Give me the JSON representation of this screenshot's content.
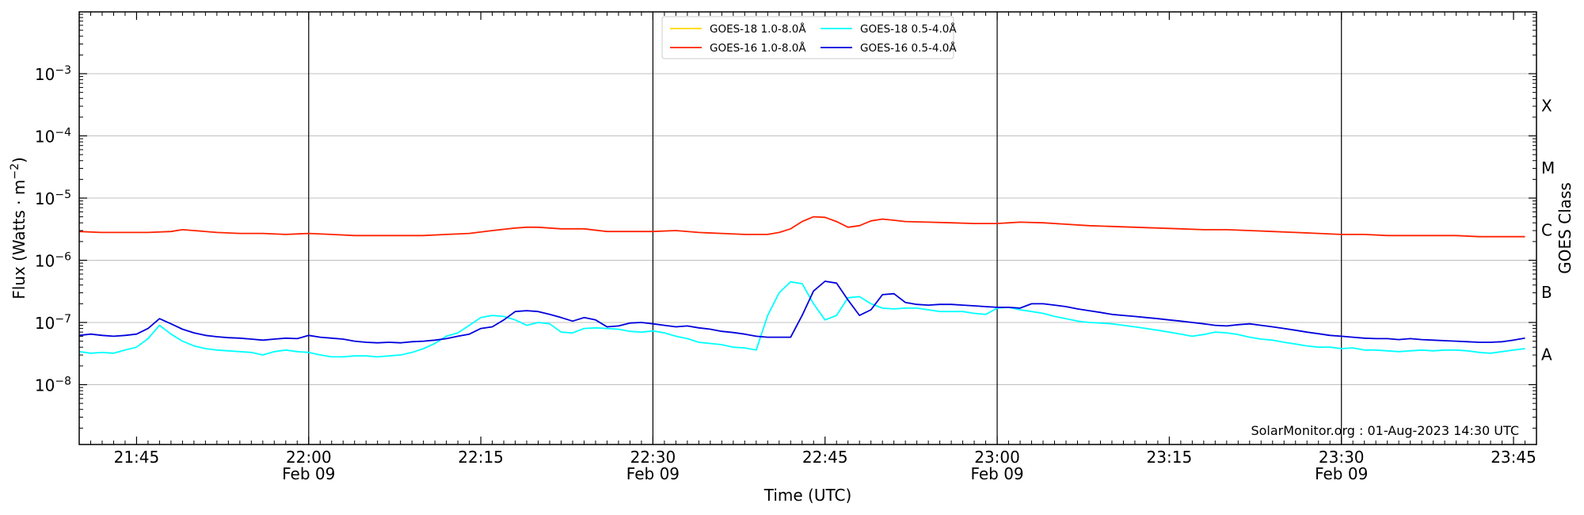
{
  "chart_data": {
    "type": "line",
    "x_unit": "minutes after 21:40 UTC, Feb 09",
    "xlim": [
      0,
      127
    ],
    "ylim_log10": [
      -9,
      -2
    ],
    "ylabel": "Flux (Watts · m",
    "ylabel_exp": "−2",
    "ylabel_close": ")",
    "xlabel": "Time (UTC)",
    "right_label": "GOES Class",
    "credit": "SolarMonitor.org : 01-Aug-2023 14:30 UTC",
    "y_ticks": [
      {
        "exp": -3,
        "base": "10",
        "sup": "−3"
      },
      {
        "exp": -4,
        "base": "10",
        "sup": "−4"
      },
      {
        "exp": -5,
        "base": "10",
        "sup": "−5"
      },
      {
        "exp": -6,
        "base": "10",
        "sup": "−6"
      },
      {
        "exp": -7,
        "base": "10",
        "sup": "−7"
      },
      {
        "exp": -8,
        "base": "10",
        "sup": "−8"
      }
    ],
    "x_ticks": [
      {
        "t": 5,
        "label": "21:45",
        "date": ""
      },
      {
        "t": 20,
        "label": "22:00",
        "date": "Feb 09"
      },
      {
        "t": 35,
        "label": "22:15",
        "date": ""
      },
      {
        "t": 50,
        "label": "22:30",
        "date": "Feb 09"
      },
      {
        "t": 65,
        "label": "22:45",
        "date": ""
      },
      {
        "t": 80,
        "label": "23:00",
        "date": "Feb 09"
      },
      {
        "t": 95,
        "label": "23:15",
        "date": ""
      },
      {
        "t": 110,
        "label": "23:30",
        "date": "Feb 09"
      },
      {
        "t": 125,
        "label": "23:45",
        "date": ""
      }
    ],
    "goes_classes": [
      {
        "label": "X",
        "exp": -3.5
      },
      {
        "label": "M",
        "exp": -4.5
      },
      {
        "label": "C",
        "exp": -5.5
      },
      {
        "label": "B",
        "exp": -6.5
      },
      {
        "label": "A",
        "exp": -7.5
      }
    ],
    "legend": [
      {
        "label": "GOES-18 1.0-8.0Å",
        "color": "#ffd700"
      },
      {
        "label": "GOES-18 0.5-4.0Å",
        "color": "#00ffff"
      },
      {
        "label": "GOES-16 1.0-8.0Å",
        "color": "#ff2200"
      },
      {
        "label": "GOES-16 0.5-4.0Å",
        "color": "#0000dd"
      }
    ],
    "series": [
      {
        "name": "GOES-16 1.0-8.0Å",
        "color": "#ff2200",
        "x": [
          0,
          2,
          4,
          6,
          8,
          9,
          10,
          12,
          14,
          16,
          18,
          20,
          22,
          24,
          26,
          28,
          30,
          32,
          34,
          36,
          38,
          39,
          40,
          42,
          44,
          46,
          48,
          50,
          52,
          54,
          56,
          58,
          60,
          61,
          62,
          63,
          64,
          65,
          66,
          67,
          68,
          69,
          70,
          71,
          72,
          74,
          76,
          78,
          80,
          82,
          84,
          86,
          88,
          90,
          92,
          94,
          96,
          98,
          100,
          102,
          104,
          106,
          108,
          110,
          112,
          114,
          116,
          118,
          120,
          122,
          124,
          126
        ],
        "y": [
          2.9e-06,
          2.8e-06,
          2.8e-06,
          2.8e-06,
          2.9e-06,
          3.1e-06,
          3e-06,
          2.8e-06,
          2.7e-06,
          2.7e-06,
          2.6e-06,
          2.7e-06,
          2.6e-06,
          2.5e-06,
          2.5e-06,
          2.5e-06,
          2.5e-06,
          2.6e-06,
          2.7e-06,
          3e-06,
          3.3e-06,
          3.4e-06,
          3.4e-06,
          3.2e-06,
          3.2e-06,
          2.9e-06,
          2.9e-06,
          2.9e-06,
          3e-06,
          2.8e-06,
          2.7e-06,
          2.6e-06,
          2.6e-06,
          2.8e-06,
          3.2e-06,
          4.2e-06,
          5e-06,
          4.9e-06,
          4.2e-06,
          3.4e-06,
          3.6e-06,
          4.3e-06,
          4.6e-06,
          4.4e-06,
          4.2e-06,
          4.1e-06,
          4e-06,
          3.9e-06,
          3.9e-06,
          4.1e-06,
          4e-06,
          3.8e-06,
          3.6e-06,
          3.5e-06,
          3.4e-06,
          3.3e-06,
          3.2e-06,
          3.1e-06,
          3.1e-06,
          3e-06,
          2.9e-06,
          2.8e-06,
          2.7e-06,
          2.6e-06,
          2.6e-06,
          2.5e-06,
          2.5e-06,
          2.5e-06,
          2.5e-06,
          2.4e-06,
          2.4e-06,
          2.4e-06
        ]
      },
      {
        "name": "GOES-18 0.5-4.0Å",
        "color": "#00ffff",
        "x": [
          0,
          1,
          2,
          3,
          4,
          5,
          6,
          7,
          8,
          9,
          10,
          11,
          12,
          13,
          14,
          15,
          16,
          17,
          18,
          19,
          20,
          21,
          22,
          23,
          24,
          25,
          26,
          27,
          28,
          29,
          30,
          31,
          32,
          33,
          34,
          35,
          36,
          37,
          38,
          39,
          40,
          41,
          42,
          43,
          44,
          45,
          46,
          47,
          48,
          49,
          50,
          51,
          52,
          53,
          54,
          55,
          56,
          57,
          58,
          59,
          60,
          61,
          62,
          63,
          64,
          65,
          66,
          67,
          68,
          69,
          70,
          71,
          72,
          73,
          74,
          75,
          76,
          77,
          78,
          79,
          80,
          81,
          82,
          83,
          84,
          85,
          86,
          87,
          88,
          89,
          90,
          91,
          92,
          93,
          94,
          95,
          96,
          97,
          98,
          99,
          100,
          101,
          102,
          103,
          104,
          105,
          106,
          107,
          108,
          109,
          110,
          111,
          112,
          113,
          114,
          115,
          116,
          117,
          118,
          119,
          120,
          121,
          122,
          123,
          124,
          125,
          126
        ],
        "y": [
          3.4e-08,
          3.2e-08,
          3.3e-08,
          3.2e-08,
          3.6e-08,
          4e-08,
          5.5e-08,
          9e-08,
          6.5e-08,
          5e-08,
          4.2e-08,
          3.8e-08,
          3.6e-08,
          3.5e-08,
          3.4e-08,
          3.3e-08,
          3e-08,
          3.4e-08,
          3.6e-08,
          3.4e-08,
          3.3e-08,
          3e-08,
          2.8e-08,
          2.8e-08,
          2.9e-08,
          2.9e-08,
          2.8e-08,
          2.9e-08,
          3e-08,
          3.3e-08,
          3.8e-08,
          4.6e-08,
          6e-08,
          6.8e-08,
          9e-08,
          1.2e-07,
          1.3e-07,
          1.25e-07,
          1.1e-07,
          9e-08,
          1e-07,
          9.5e-08,
          7e-08,
          6.8e-08,
          8e-08,
          8.2e-08,
          8e-08,
          7.8e-08,
          7.2e-08,
          7e-08,
          7.3e-08,
          6.8e-08,
          6e-08,
          5.5e-08,
          4.8e-08,
          4.6e-08,
          4.4e-08,
          4e-08,
          3.9e-08,
          3.6e-08,
          1.3e-07,
          3e-07,
          4.5e-07,
          4.2e-07,
          2e-07,
          1.1e-07,
          1.3e-07,
          2.5e-07,
          2.6e-07,
          2e-07,
          1.7e-07,
          1.65e-07,
          1.7e-07,
          1.7e-07,
          1.6e-07,
          1.5e-07,
          1.5e-07,
          1.5e-07,
          1.4e-07,
          1.35e-07,
          1.7e-07,
          1.75e-07,
          1.6e-07,
          1.5e-07,
          1.4e-07,
          1.25e-07,
          1.15e-07,
          1.05e-07,
          1e-07,
          9.8e-08,
          9.5e-08,
          9e-08,
          8.5e-08,
          8e-08,
          7.5e-08,
          7e-08,
          6.5e-08,
          6e-08,
          6.4e-08,
          7e-08,
          6.8e-08,
          6.4e-08,
          5.8e-08,
          5.4e-08,
          5.2e-08,
          4.8e-08,
          4.5e-08,
          4.2e-08,
          4e-08,
          4e-08,
          3.8e-08,
          3.9e-08,
          3.6e-08,
          3.6e-08,
          3.5e-08,
          3.4e-08,
          3.5e-08,
          3.6e-08,
          3.5e-08,
          3.6e-08,
          3.6e-08,
          3.5e-08,
          3.3e-08,
          3.2e-08,
          3.4e-08,
          3.6e-08,
          3.8e-08
        ]
      },
      {
        "name": "GOES-16 0.5-4.0Å",
        "color": "#0000dd",
        "x": [
          0,
          1,
          2,
          3,
          4,
          5,
          6,
          7,
          8,
          9,
          10,
          11,
          12,
          13,
          14,
          15,
          16,
          17,
          18,
          19,
          20,
          21,
          22,
          23,
          24,
          25,
          26,
          27,
          28,
          29,
          30,
          31,
          32,
          33,
          34,
          35,
          36,
          37,
          38,
          39,
          40,
          41,
          42,
          43,
          44,
          45,
          46,
          47,
          48,
          49,
          50,
          51,
          52,
          53,
          54,
          55,
          56,
          57,
          58,
          59,
          60,
          61,
          62,
          63,
          64,
          65,
          66,
          67,
          68,
          69,
          70,
          71,
          72,
          73,
          74,
          75,
          76,
          77,
          78,
          79,
          80,
          81,
          82,
          83,
          84,
          85,
          86,
          87,
          88,
          89,
          90,
          91,
          92,
          93,
          94,
          95,
          96,
          97,
          98,
          99,
          100,
          101,
          102,
          103,
          104,
          105,
          106,
          107,
          108,
          109,
          110,
          111,
          112,
          113,
          114,
          115,
          116,
          117,
          118,
          119,
          120,
          121,
          122,
          123,
          124,
          125,
          126
        ],
        "y": [
          6.2e-08,
          6.5e-08,
          6.2e-08,
          6e-08,
          6.2e-08,
          6.5e-08,
          8e-08,
          1.15e-07,
          9.5e-08,
          7.8e-08,
          6.8e-08,
          6.2e-08,
          5.9e-08,
          5.7e-08,
          5.6e-08,
          5.4e-08,
          5.2e-08,
          5.4e-08,
          5.6e-08,
          5.5e-08,
          6.2e-08,
          5.8e-08,
          5.6e-08,
          5.4e-08,
          5e-08,
          4.8e-08,
          4.7e-08,
          4.8e-08,
          4.7e-08,
          4.9e-08,
          5e-08,
          5.2e-08,
          5.5e-08,
          6e-08,
          6.5e-08,
          8e-08,
          8.5e-08,
          1.1e-07,
          1.5e-07,
          1.55e-07,
          1.5e-07,
          1.35e-07,
          1.2e-07,
          1.05e-07,
          1.2e-07,
          1.1e-07,
          8.5e-08,
          8.8e-08,
          9.8e-08,
          1e-07,
          9.5e-08,
          9e-08,
          8.5e-08,
          8.8e-08,
          8.2e-08,
          7.8e-08,
          7.2e-08,
          6.9e-08,
          6.5e-08,
          6e-08,
          5.8e-08,
          5.8e-08,
          5.8e-08,
          1.3e-07,
          3.2e-07,
          4.6e-07,
          4.3e-07,
          2.3e-07,
          1.3e-07,
          1.6e-07,
          2.8e-07,
          2.9e-07,
          2.1e-07,
          1.95e-07,
          1.9e-07,
          1.95e-07,
          1.95e-07,
          1.9e-07,
          1.85e-07,
          1.8e-07,
          1.75e-07,
          1.75e-07,
          1.7e-07,
          2e-07,
          2e-07,
          1.9e-07,
          1.8e-07,
          1.65e-07,
          1.55e-07,
          1.45e-07,
          1.35e-07,
          1.3e-07,
          1.25e-07,
          1.2e-07,
          1.15e-07,
          1.1e-07,
          1.05e-07,
          1e-07,
          9.5e-08,
          9e-08,
          8.8e-08,
          9.2e-08,
          9.5e-08,
          9e-08,
          8.5e-08,
          8e-08,
          7.5e-08,
          7e-08,
          6.6e-08,
          6.2e-08,
          6e-08,
          5.8e-08,
          5.6e-08,
          5.5e-08,
          5.5e-08,
          5.3e-08,
          5.5e-08,
          5.3e-08,
          5.2e-08,
          5.1e-08,
          5e-08,
          4.9e-08,
          4.8e-08,
          4.8e-08,
          4.9e-08,
          5.2e-08,
          5.6e-08
        ]
      }
    ]
  }
}
